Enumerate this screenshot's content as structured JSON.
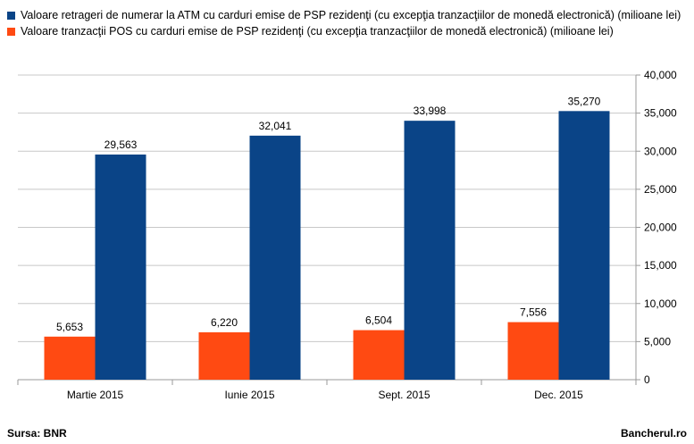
{
  "chart_data": {
    "type": "bar",
    "categories": [
      "Martie 2015",
      "Iunie 2015",
      "Sept. 2015",
      "Dec. 2015"
    ],
    "series": [
      {
        "name": "Valoare  retrageri de numerar la ATM  cu carduri emise de PSP rezidenţi (cu excepţia tranzacţiilor de monedă electronică) (milioane lei)",
        "values": [
          29563,
          32041,
          33998,
          35270
        ],
        "value_labels": [
          "29,563",
          "32,041",
          "33,998",
          "35,270"
        ],
        "color": "#0a4487"
      },
      {
        "name": "Valoare tranzacţii POS cu carduri emise de PSP rezidenţi  (cu excepţia tranzacţiilor de   monedă  electronică) (milioane lei)",
        "values": [
          5653,
          6220,
          6504,
          7556
        ],
        "value_labels": [
          "5,653",
          "6,220",
          "6,504",
          "7,556"
        ],
        "color": "#ff4a12"
      }
    ],
    "legend_order": [
      0,
      1
    ],
    "bar_order": [
      1,
      0
    ],
    "ylim": [
      0,
      40000
    ],
    "yticks": [
      0,
      5000,
      10000,
      15000,
      20000,
      25000,
      30000,
      35000,
      40000
    ],
    "ytick_labels": [
      "0",
      "5,000",
      "10,000",
      "15,000",
      "20,000",
      "25,000",
      "30,000",
      "35,000",
      "40,000"
    ],
    "y_axis_side": "right",
    "grid": true,
    "legend_position": "top-left"
  },
  "footer": {
    "source": "Sursa: BNR",
    "brand": "Bancherul.ro"
  },
  "colors": {
    "grid": "#c8c8c8",
    "axis": "#9a9a9a"
  }
}
